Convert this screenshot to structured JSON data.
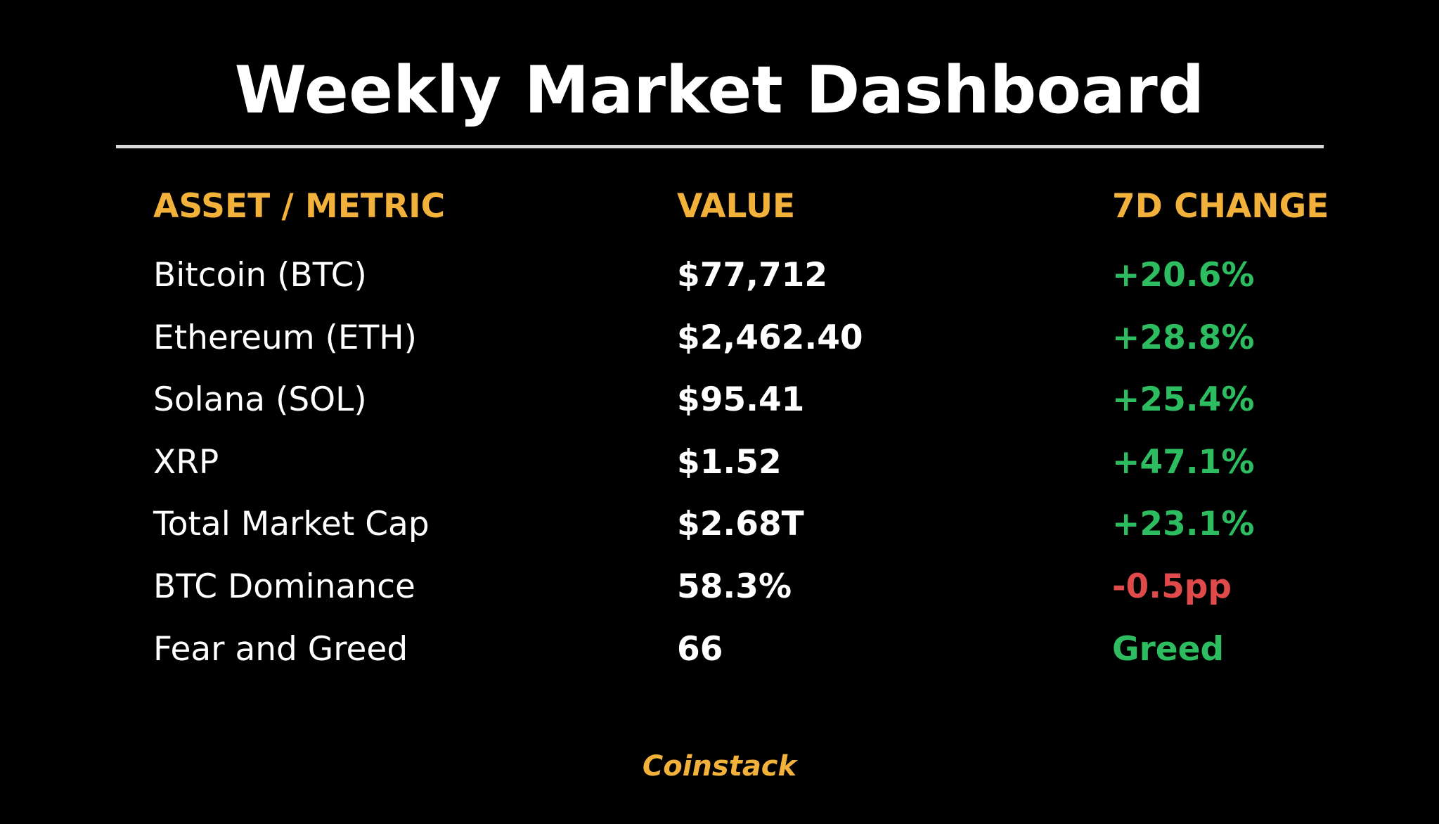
{
  "title": "Weekly Market Dashboard",
  "colors": {
    "background": "#000000",
    "accent": "#f2b13a",
    "positive": "#2dbd60",
    "negative": "#e04a4a",
    "text": "#ffffff",
    "rule": "#d9d9d9"
  },
  "table": {
    "headers": [
      "ASSET / METRIC",
      "VALUE",
      "7D CHANGE"
    ],
    "rows": [
      {
        "metric": "Bitcoin (BTC)",
        "value": "$77,712",
        "change": "+20.6%",
        "trend": "positive"
      },
      {
        "metric": "Ethereum (ETH)",
        "value": "$2,462.40",
        "change": "+28.8%",
        "trend": "positive"
      },
      {
        "metric": "Solana (SOL)",
        "value": "$95.41",
        "change": "+25.4%",
        "trend": "positive"
      },
      {
        "metric": "XRP",
        "value": "$1.52",
        "change": "+47.1%",
        "trend": "positive"
      },
      {
        "metric": "Total Market Cap",
        "value": "$2.68T",
        "change": "+23.1%",
        "trend": "positive"
      },
      {
        "metric": "BTC Dominance",
        "value": "58.3%",
        "change": "-0.5pp",
        "trend": "negative"
      },
      {
        "metric": "Fear and Greed",
        "value": "66",
        "change": "Greed",
        "trend": "positive"
      }
    ]
  },
  "footer": "Coinstack"
}
